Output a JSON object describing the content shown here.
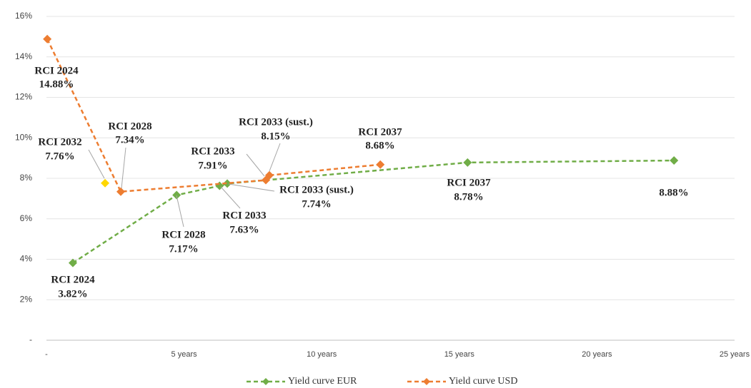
{
  "chart_data": {
    "type": "line",
    "xlim": [
      0,
      25
    ],
    "xticks": [
      {
        "value": 0,
        "label": "-"
      },
      {
        "value": 5,
        "label": "5 years"
      },
      {
        "value": 10,
        "label": "10 years"
      },
      {
        "value": 15,
        "label": "15 years"
      },
      {
        "value": 20,
        "label": "20 years"
      },
      {
        "value": 25,
        "label": "25 years"
      }
    ],
    "ylim": [
      0,
      16
    ],
    "yticks": [
      {
        "value": 0,
        "label": "-"
      },
      {
        "value": 2,
        "label": "2%"
      },
      {
        "value": 4,
        "label": "4%"
      },
      {
        "value": 6,
        "label": "6%"
      },
      {
        "value": 8,
        "label": "8%"
      },
      {
        "value": 10,
        "label": "10%"
      },
      {
        "value": 12,
        "label": "12%"
      },
      {
        "value": 14,
        "label": "14%"
      },
      {
        "value": 16,
        "label": "16%"
      }
    ],
    "grid": true,
    "legend": "bottom",
    "series": [
      {
        "name": "Yield curve EUR",
        "color": "#70ad47",
        "x": [
          0.96,
          4.73,
          6.29,
          6.57,
          15.3,
          22.8
        ],
        "values": [
          3.82,
          7.17,
          7.63,
          7.74,
          8.78,
          8.88
        ],
        "point_labels": [
          "RCI 2024",
          "RCI 2028",
          "RCI 2033",
          "RCI 2033 (sust.)",
          "RCI 2037",
          null
        ],
        "value_labels": [
          "3.82%",
          "7.17%",
          "7.63%",
          "7.74%",
          "8.78%",
          "8.88%"
        ]
      },
      {
        "name": "Yield curve USD",
        "color": "#ed7d31",
        "x": [
          0.03,
          2.7,
          7.97,
          8.1,
          12.13
        ],
        "values": [
          14.88,
          7.34,
          7.91,
          8.15,
          8.68
        ],
        "point_labels": [
          "RCI 2024",
          "RCI 2028",
          "RCI 2033",
          "RCI 2033 (sust.)",
          "RCI 2037"
        ],
        "value_labels": [
          "14.88%",
          "7.34%",
          "7.91%",
          "8.15%",
          "8.68%"
        ]
      }
    ],
    "extra_points": [
      {
        "label": "RCI 2032",
        "x": 2.13,
        "value": 7.76,
        "value_label": "7.76%",
        "color": "#ffd700"
      }
    ]
  }
}
